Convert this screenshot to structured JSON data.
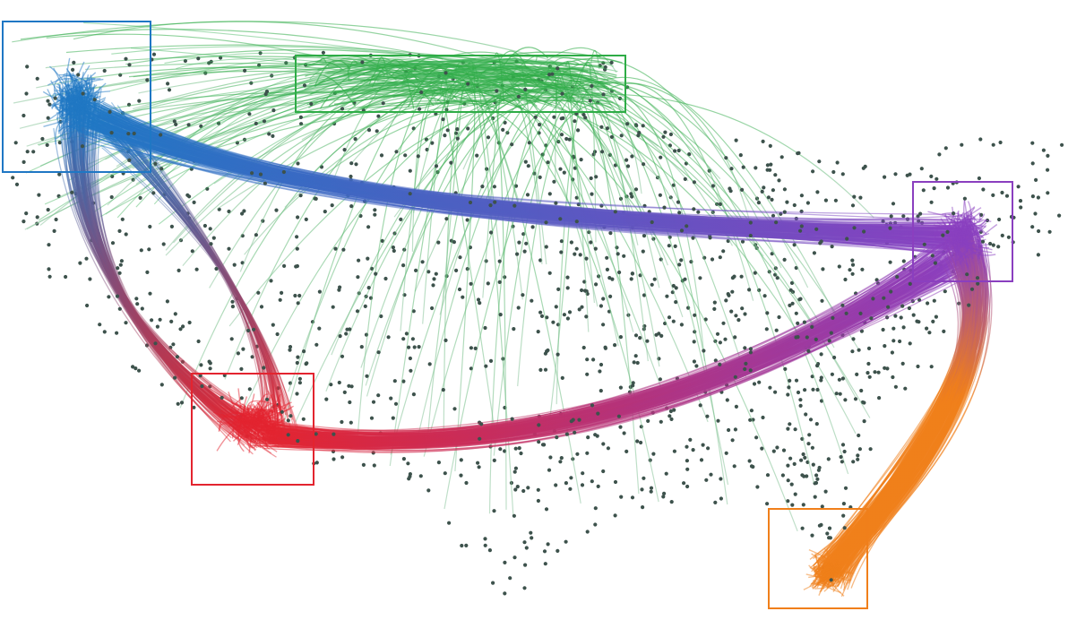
{
  "regions": [
    {
      "name": "northwest",
      "color": "#1f77c4"
    },
    {
      "name": "north",
      "color": "#2eac46"
    },
    {
      "name": "southwest",
      "color": "#e3242f"
    },
    {
      "name": "northeast",
      "color": "#8a3fbf"
    },
    {
      "name": "southeast",
      "color": "#f07f1a"
    }
  ],
  "flows": [
    {
      "from": "northwest",
      "to": "southwest"
    },
    {
      "from": "northwest",
      "to": "northeast"
    },
    {
      "from": "southwest",
      "to": "northeast"
    },
    {
      "from": "northeast",
      "to": "southeast"
    },
    {
      "from": "north",
      "to": "spread"
    }
  ],
  "node_color": "#3d524c",
  "background": "#ffffff"
}
